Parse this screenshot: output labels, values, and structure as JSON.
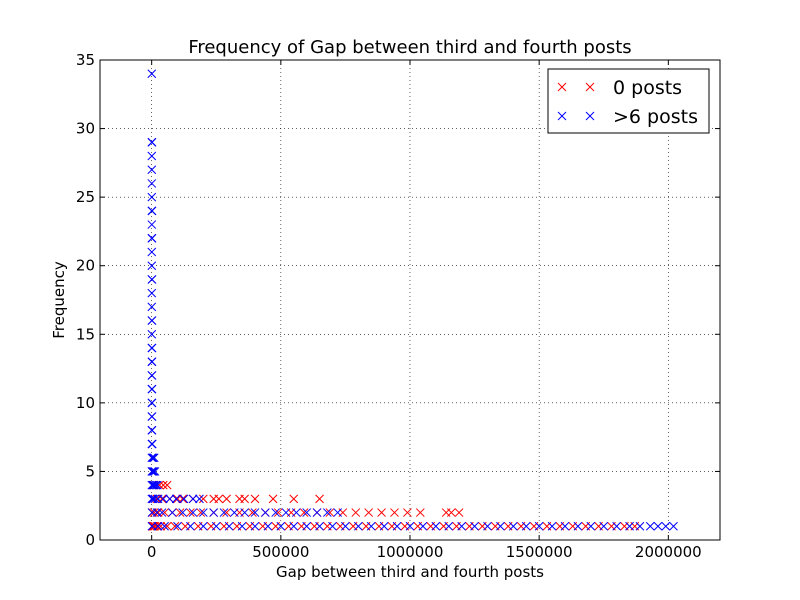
{
  "chart_data": {
    "type": "scatter",
    "title": "Frequency of Gap between third and fourth posts",
    "xlabel": "Gap between third and fourth posts",
    "ylabel": "Frequency",
    "xlim": [
      -200000,
      2200000
    ],
    "ylim": [
      0,
      35
    ],
    "xticks": [
      0,
      500000,
      1000000,
      1500000,
      2000000
    ],
    "xtick_labels": [
      "0",
      "500000",
      "1000000",
      "1500000",
      "2000000"
    ],
    "yticks": [
      0,
      5,
      10,
      15,
      20,
      25,
      30,
      35
    ],
    "ytick_labels": [
      "0",
      "5",
      "10",
      "15",
      "20",
      "25",
      "30",
      "35"
    ],
    "grid": true,
    "legend_position": "top-right",
    "marker": "x",
    "series": [
      {
        "name": "0 posts",
        "color": "#ff0000",
        "points": [
          [
            2000,
            1
          ],
          [
            4000,
            1
          ],
          [
            6000,
            1
          ],
          [
            8000,
            1
          ],
          [
            12000,
            1
          ],
          [
            20000,
            1
          ],
          [
            35000,
            1
          ],
          [
            60000,
            1
          ],
          [
            90000,
            1
          ],
          [
            130000,
            1
          ],
          [
            180000,
            1
          ],
          [
            230000,
            1
          ],
          [
            280000,
            1
          ],
          [
            330000,
            1
          ],
          [
            380000,
            1
          ],
          [
            430000,
            1
          ],
          [
            480000,
            1
          ],
          [
            530000,
            1
          ],
          [
            580000,
            1
          ],
          [
            630000,
            1
          ],
          [
            680000,
            1
          ],
          [
            730000,
            1
          ],
          [
            780000,
            1
          ],
          [
            830000,
            1
          ],
          [
            880000,
            1
          ],
          [
            930000,
            1
          ],
          [
            980000,
            1
          ],
          [
            1030000,
            1
          ],
          [
            1080000,
            1
          ],
          [
            1130000,
            1
          ],
          [
            1180000,
            1
          ],
          [
            1230000,
            1
          ],
          [
            1280000,
            1
          ],
          [
            1330000,
            1
          ],
          [
            1380000,
            1
          ],
          [
            1430000,
            1
          ],
          [
            1480000,
            1
          ],
          [
            1530000,
            1
          ],
          [
            1580000,
            1
          ],
          [
            1630000,
            1
          ],
          [
            1680000,
            1
          ],
          [
            1730000,
            1
          ],
          [
            1780000,
            1
          ],
          [
            1830000,
            1
          ],
          [
            1870000,
            1
          ],
          [
            3000,
            2
          ],
          [
            10000,
            2
          ],
          [
            25000,
            2
          ],
          [
            50000,
            2
          ],
          [
            80000,
            2
          ],
          [
            110000,
            2
          ],
          [
            150000,
            2
          ],
          [
            190000,
            2
          ],
          [
            240000,
            2
          ],
          [
            290000,
            2
          ],
          [
            340000,
            2
          ],
          [
            390000,
            2
          ],
          [
            440000,
            2
          ],
          [
            490000,
            2
          ],
          [
            540000,
            2
          ],
          [
            590000,
            2
          ],
          [
            640000,
            2
          ],
          [
            690000,
            2
          ],
          [
            740000,
            2
          ],
          [
            790000,
            2
          ],
          [
            840000,
            2
          ],
          [
            890000,
            2
          ],
          [
            940000,
            2
          ],
          [
            990000,
            2
          ],
          [
            1040000,
            2
          ],
          [
            1140000,
            2
          ],
          [
            1160000,
            2
          ],
          [
            1190000,
            2
          ],
          [
            5000,
            3
          ],
          [
            20000,
            3
          ],
          [
            40000,
            3
          ],
          [
            70000,
            3
          ],
          [
            100000,
            3
          ],
          [
            120000,
            3
          ],
          [
            160000,
            3
          ],
          [
            200000,
            3
          ],
          [
            240000,
            3
          ],
          [
            260000,
            3
          ],
          [
            290000,
            3
          ],
          [
            340000,
            3
          ],
          [
            360000,
            3
          ],
          [
            400000,
            3
          ],
          [
            470000,
            3
          ],
          [
            550000,
            3
          ],
          [
            650000,
            3
          ],
          [
            8000,
            4
          ],
          [
            30000,
            4
          ],
          [
            45000,
            4
          ],
          [
            60000,
            4
          ]
        ]
      },
      {
        "name": ">6 posts",
        "color": "#0000ff",
        "points": [
          [
            500,
            34
          ],
          [
            500,
            29
          ],
          [
            1500,
            29
          ],
          [
            500,
            28
          ],
          [
            500,
            27
          ],
          [
            500,
            26
          ],
          [
            500,
            25
          ],
          [
            500,
            24
          ],
          [
            1500,
            24
          ],
          [
            500,
            23
          ],
          [
            500,
            22
          ],
          [
            1500,
            22
          ],
          [
            500,
            21
          ],
          [
            500,
            20
          ],
          [
            500,
            19
          ],
          [
            1500,
            19
          ],
          [
            500,
            18
          ],
          [
            500,
            17
          ],
          [
            500,
            16
          ],
          [
            1500,
            16
          ],
          [
            500,
            15
          ],
          [
            500,
            14
          ],
          [
            1500,
            14
          ],
          [
            500,
            13
          ],
          [
            1500,
            13
          ],
          [
            500,
            12
          ],
          [
            1500,
            12
          ],
          [
            500,
            11
          ],
          [
            1500,
            11
          ],
          [
            500,
            10
          ],
          [
            1500,
            10
          ],
          [
            500,
            9
          ],
          [
            1500,
            9
          ],
          [
            500,
            8
          ],
          [
            1500,
            8
          ],
          [
            500,
            7
          ],
          [
            2500,
            7
          ],
          [
            500,
            6
          ],
          [
            5000,
            6
          ],
          [
            10000,
            6
          ],
          [
            500,
            5
          ],
          [
            4000,
            5
          ],
          [
            8000,
            5
          ],
          [
            13000,
            5
          ],
          [
            500,
            4
          ],
          [
            5000,
            4
          ],
          [
            10000,
            4
          ],
          [
            16000,
            4
          ],
          [
            22000,
            4
          ],
          [
            500,
            3
          ],
          [
            5000,
            3
          ],
          [
            12000,
            3
          ],
          [
            25000,
            3
          ],
          [
            45000,
            3
          ],
          [
            70000,
            3
          ],
          [
            95000,
            3
          ],
          [
            125000,
            3
          ],
          [
            160000,
            3
          ],
          [
            185000,
            3
          ],
          [
            1000,
            2
          ],
          [
            20000,
            2
          ],
          [
            40000,
            2
          ],
          [
            80000,
            2
          ],
          [
            120000,
            2
          ],
          [
            160000,
            2
          ],
          [
            200000,
            2
          ],
          [
            240000,
            2
          ],
          [
            280000,
            2
          ],
          [
            320000,
            2
          ],
          [
            360000,
            2
          ],
          [
            400000,
            2
          ],
          [
            440000,
            2
          ],
          [
            480000,
            2
          ],
          [
            520000,
            2
          ],
          [
            560000,
            2
          ],
          [
            600000,
            2
          ],
          [
            640000,
            2
          ],
          [
            680000,
            2
          ],
          [
            720000,
            2
          ],
          [
            1000,
            1
          ],
          [
            25000,
            1
          ],
          [
            50000,
            1
          ],
          [
            100000,
            1
          ],
          [
            150000,
            1
          ],
          [
            200000,
            1
          ],
          [
            250000,
            1
          ],
          [
            300000,
            1
          ],
          [
            350000,
            1
          ],
          [
            400000,
            1
          ],
          [
            450000,
            1
          ],
          [
            500000,
            1
          ],
          [
            550000,
            1
          ],
          [
            600000,
            1
          ],
          [
            650000,
            1
          ],
          [
            700000,
            1
          ],
          [
            750000,
            1
          ],
          [
            800000,
            1
          ],
          [
            850000,
            1
          ],
          [
            900000,
            1
          ],
          [
            950000,
            1
          ],
          [
            1000000,
            1
          ],
          [
            1050000,
            1
          ],
          [
            1100000,
            1
          ],
          [
            1150000,
            1
          ],
          [
            1200000,
            1
          ],
          [
            1250000,
            1
          ],
          [
            1300000,
            1
          ],
          [
            1350000,
            1
          ],
          [
            1400000,
            1
          ],
          [
            1450000,
            1
          ],
          [
            1500000,
            1
          ],
          [
            1550000,
            1
          ],
          [
            1600000,
            1
          ],
          [
            1650000,
            1
          ],
          [
            1700000,
            1
          ],
          [
            1750000,
            1
          ],
          [
            1800000,
            1
          ],
          [
            1850000,
            1
          ],
          [
            1890000,
            1
          ],
          [
            1930000,
            1
          ],
          [
            1960000,
            1
          ],
          [
            1990000,
            1
          ],
          [
            2020000,
            1
          ]
        ]
      }
    ]
  }
}
